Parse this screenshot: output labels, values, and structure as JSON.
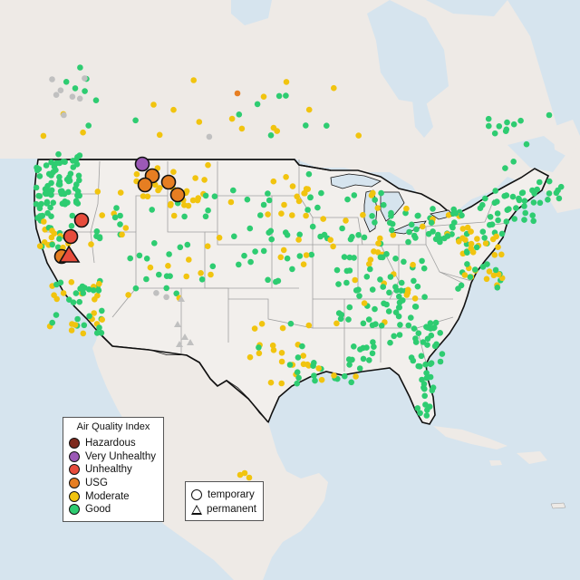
{
  "map": {
    "colors": {
      "water": "#d6e4ee",
      "land": "#eeeae6",
      "land_usa": "#f2efec",
      "borders": "#111111",
      "state_lines": "#a0a0a0"
    }
  },
  "legend": {
    "title": "Air Quality Index",
    "categories": [
      {
        "id": "hazardous",
        "label": "Hazardous",
        "color": "#7e2a1e"
      },
      {
        "id": "very-unhealthy",
        "label": "Very Unhealthy",
        "color": "#9b59b6"
      },
      {
        "id": "unhealthy",
        "label": "Unhealthy",
        "color": "#e74c3c"
      },
      {
        "id": "usg",
        "label": "USG",
        "color": "#e67e22"
      },
      {
        "id": "moderate",
        "label": "Moderate",
        "color": "#f1c40f"
      },
      {
        "id": "good",
        "label": "Good",
        "color": "#2ecc71"
      }
    ],
    "no_data_color": "#c0c0c0",
    "monitor_types": [
      {
        "id": "temporary",
        "label": "temporary",
        "shape": "circle-icon"
      },
      {
        "id": "permanent",
        "label": "permanent",
        "shape": "triangle-icon"
      }
    ]
  }
}
